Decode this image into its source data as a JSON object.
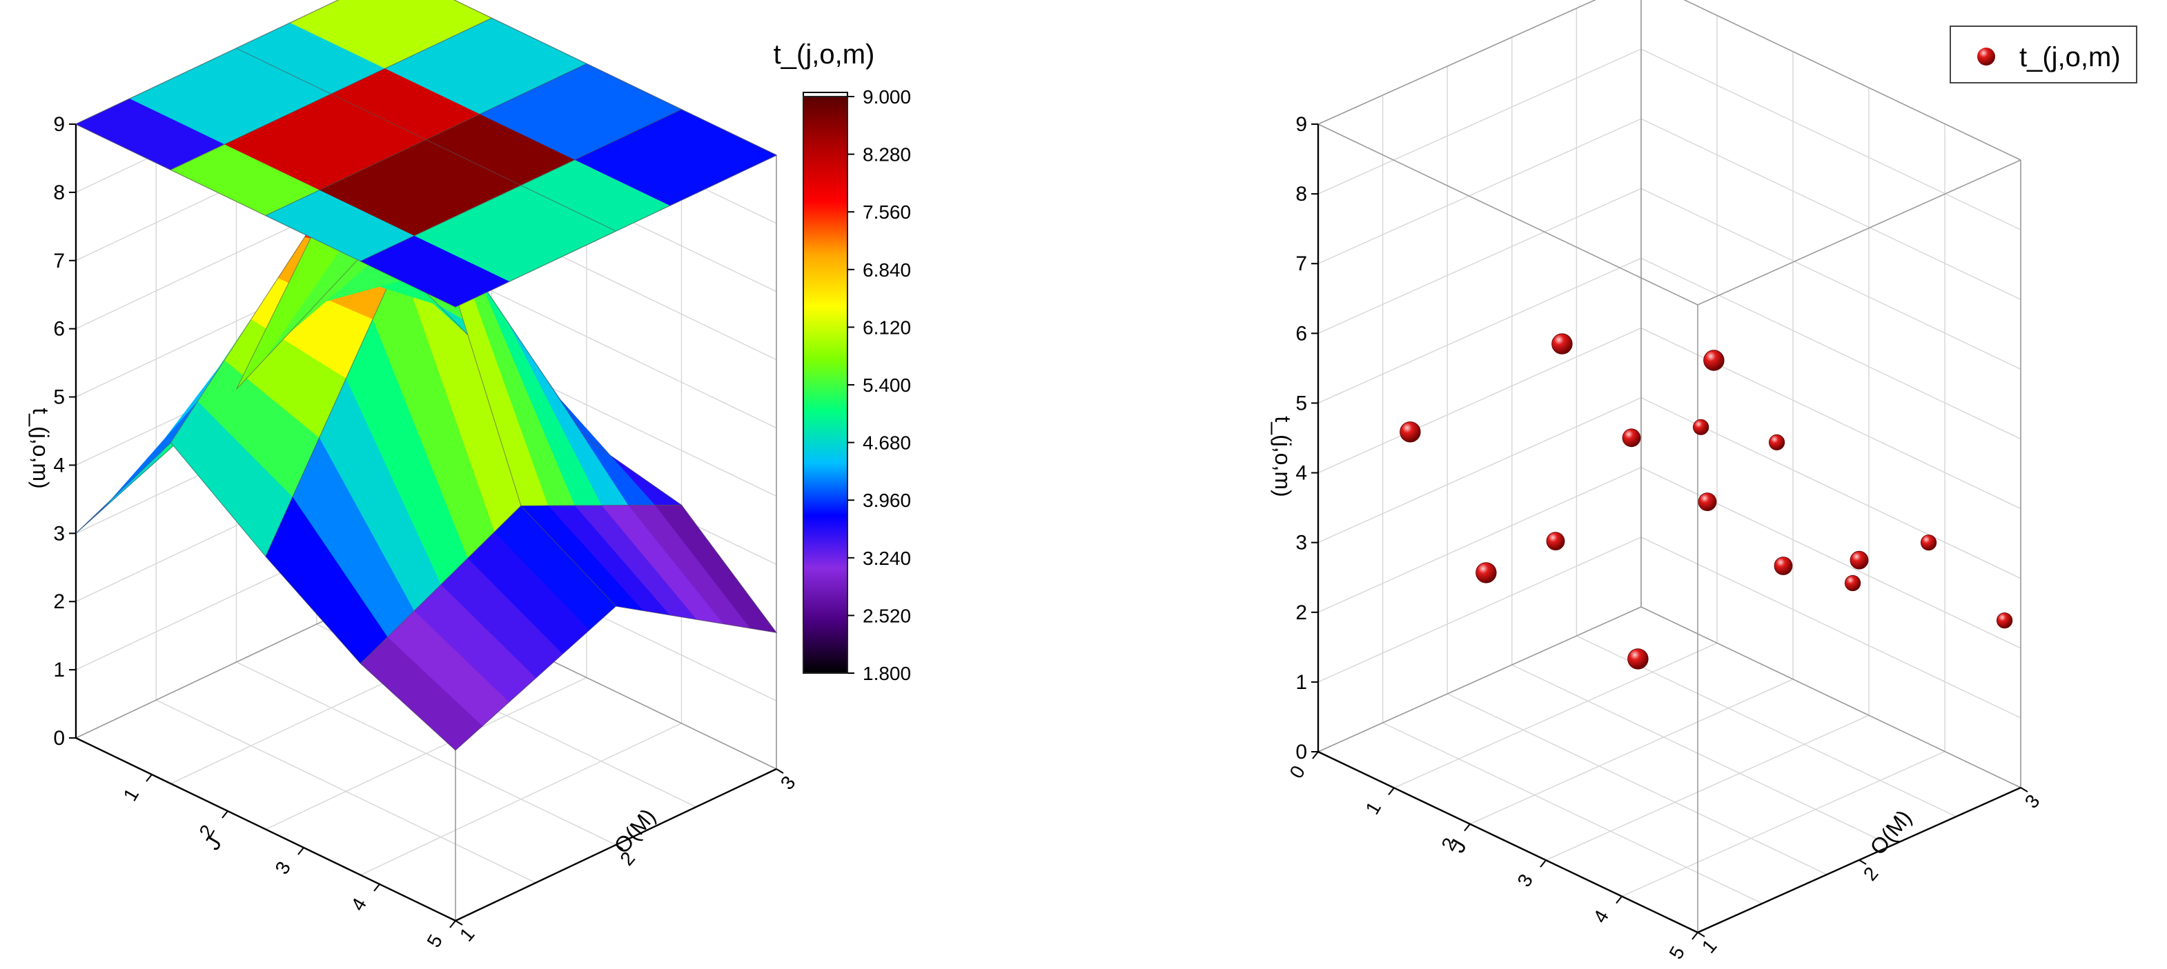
{
  "chart_data": [
    {
      "type": "surface3d",
      "colorbar_title": "t_(j,o,m)",
      "zlabel": "t_(j,o,m)",
      "xlabel": "J",
      "ylabel": "O(M)",
      "colorbar_ticks": [
        "9.000",
        "8.280",
        "7.560",
        "6.840",
        "6.120",
        "5.400",
        "4.680",
        "3.960",
        "3.240",
        "2.520",
        "1.800"
      ],
      "colormap": [
        "#000000",
        "#4b0082",
        "#8a2be2",
        "#0000ff",
        "#00bfff",
        "#00ff7f",
        "#7fff00",
        "#ffff00",
        "#ffa500",
        "#ff0000",
        "#b30000",
        "#5a0000"
      ],
      "x_ticks": [
        "1",
        "2",
        "3",
        "4",
        "5"
      ],
      "y_ticks": [
        "1",
        "2",
        "3"
      ],
      "z_ticks": [
        "0",
        "1",
        "2",
        "3",
        "4",
        "5",
        "6",
        "7",
        "8",
        "9"
      ],
      "zlim": [
        0,
        9
      ],
      "upper_sheet_values": [
        [
          9,
          9,
          9,
          9,
          9
        ],
        [
          9,
          9,
          9,
          9,
          9
        ],
        [
          9,
          9,
          9,
          9,
          9
        ]
      ],
      "lower_sheet_values": [
        [
          5.4,
          4,
          3.5,
          3.2,
          2
        ],
        [
          4,
          7.5,
          8.1,
          4.3,
          3.5
        ],
        [
          3,
          5,
          4,
          3.1,
          2.5
        ]
      ]
    },
    {
      "type": "scatter3d",
      "legend": "t_(j,o,m)",
      "zlabel": "t_(j,o,m)",
      "xlabel": "J",
      "ylabel": "O(M)",
      "x_ticks": [
        "0",
        "1",
        "2",
        "3",
        "4",
        "5"
      ],
      "y_ticks": [
        "1",
        "2",
        "3"
      ],
      "z_ticks": [
        "0",
        "1",
        "2",
        "3",
        "4",
        "5",
        "6",
        "7",
        "8",
        "9"
      ],
      "zlim": [
        0,
        9
      ],
      "marker_color": "#cc0000",
      "points": [
        {
          "x": 1,
          "y": 1,
          "z": 5
        },
        {
          "x": 2,
          "y": 1,
          "z": 3.5
        },
        {
          "x": 3,
          "y": 1,
          "z": 7.3
        },
        {
          "x": 4,
          "y": 1,
          "z": 3.3
        },
        {
          "x": 5,
          "y": 1,
          "z": 8.1
        },
        {
          "x": 1,
          "y": 2,
          "z": 2.5
        },
        {
          "x": 2,
          "y": 2,
          "z": 4.5
        },
        {
          "x": 3,
          "y": 2,
          "z": 4.1
        },
        {
          "x": 4,
          "y": 2,
          "z": 3.7
        },
        {
          "x": 5,
          "y": 2,
          "z": 4.3
        },
        {
          "x": 1,
          "y": 3,
          "z": 3.2
        },
        {
          "x": 2,
          "y": 3,
          "z": 3.5
        },
        {
          "x": 3,
          "y": 3,
          "z": 2
        },
        {
          "x": 4,
          "y": 3,
          "z": 3.1
        },
        {
          "x": 5,
          "y": 3,
          "z": 2.5
        }
      ]
    }
  ]
}
